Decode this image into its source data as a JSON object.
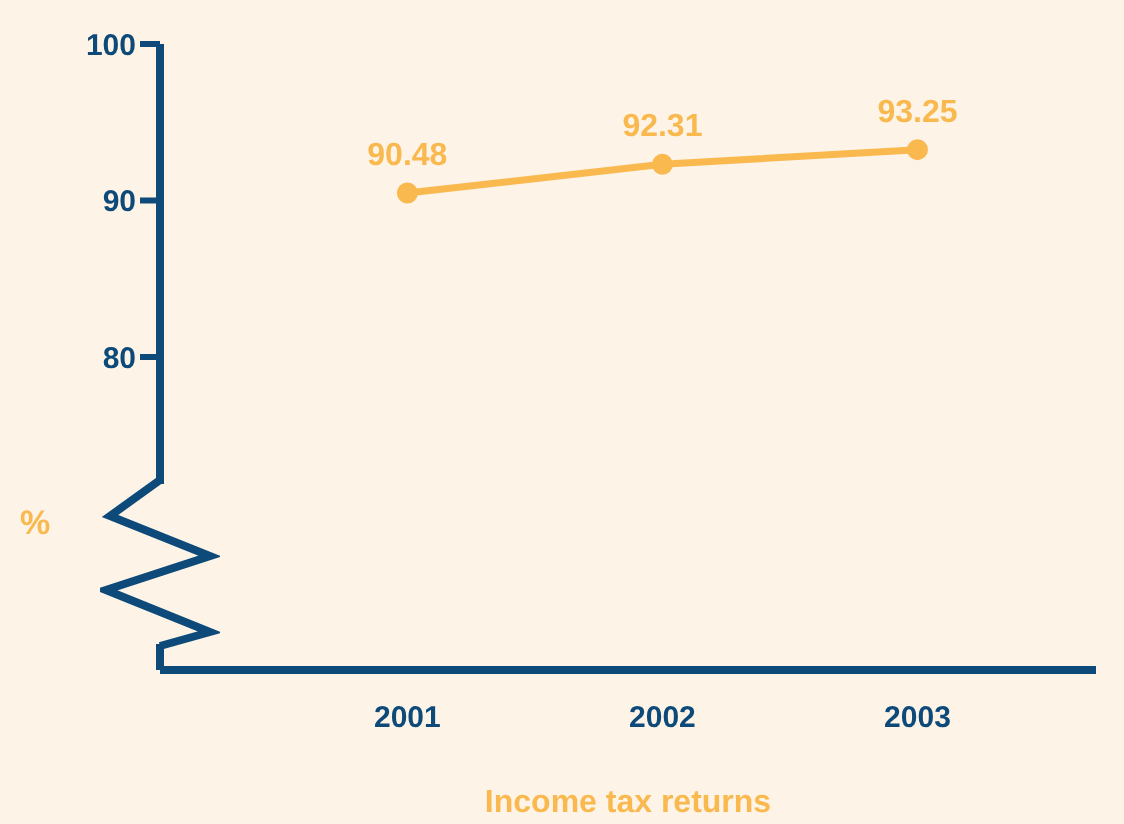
{
  "chart_data": {
    "type": "line",
    "xlabel": "Income tax returns",
    "ylabel": "%",
    "categories": [
      "2001",
      "2002",
      "2003"
    ],
    "series": [
      {
        "color": "#f9b94f",
        "values": [
          90.48,
          92.31,
          93.25
        ]
      }
    ],
    "ylim": [
      60,
      100
    ],
    "yticks": [
      80,
      90,
      100
    ],
    "data_labels": true,
    "marker": "circle",
    "grid": false
  }
}
